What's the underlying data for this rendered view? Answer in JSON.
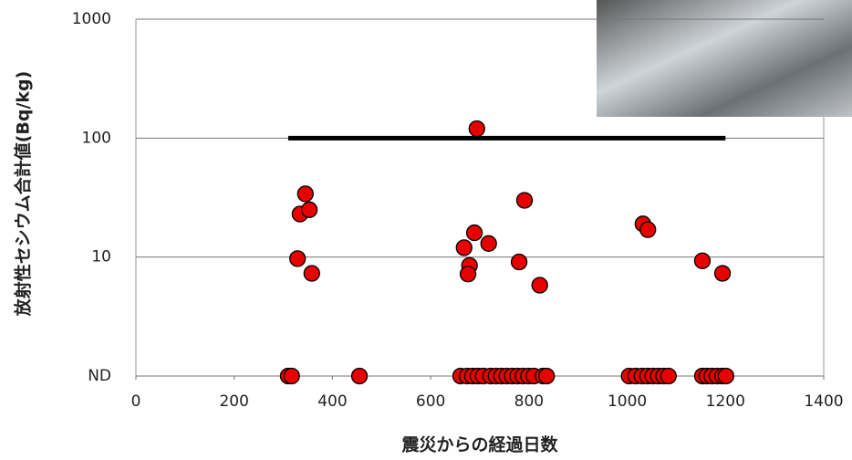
{
  "chart_data": {
    "type": "scatter",
    "x_label": "震災からの経過日数",
    "y_label": "放射性セシウム合計値(Bq/kg)",
    "log_y": true,
    "grid": true,
    "xlim": [
      0,
      1400
    ],
    "xticks": [
      0,
      200,
      400,
      600,
      800,
      1000,
      1200,
      1400
    ],
    "ylim": [
      1,
      1000
    ],
    "yticks": [
      {
        "value": 1,
        "label": "ND"
      },
      10,
      100,
      1000
    ],
    "limit_line": {
      "color": "#000000",
      "x": [
        310,
        1200
      ],
      "values": [
        100,
        100
      ]
    },
    "series": [
      {
        "color": "#e60000",
        "x": [
          345,
          334,
          353,
          329,
          358,
          694,
          791,
          689,
          668,
          718,
          679,
          676,
          780,
          822,
          1032,
          1042,
          1153,
          1194,
          310,
          317,
          455,
          661,
          674,
          685,
          696,
          707,
          722,
          733,
          744,
          755,
          766,
          777,
          788,
          799,
          810,
          829,
          836,
          1004,
          1017,
          1030,
          1041,
          1052,
          1063,
          1074,
          1084,
          1153,
          1162,
          1172,
          1183,
          1194,
          1201
        ],
        "values": [
          34,
          23,
          25,
          9.7,
          7.3,
          120,
          30,
          16,
          12,
          13,
          8.5,
          7.2,
          9.1,
          5.8,
          19,
          17,
          9.3,
          7.3,
          1,
          1,
          1,
          1,
          1,
          1,
          1,
          1,
          1,
          1,
          1,
          1,
          1,
          1,
          1,
          1,
          1,
          1,
          1,
          1,
          1,
          1,
          1,
          1,
          1,
          1,
          1,
          1,
          1,
          1,
          1,
          1,
          1
        ]
      }
    ]
  }
}
